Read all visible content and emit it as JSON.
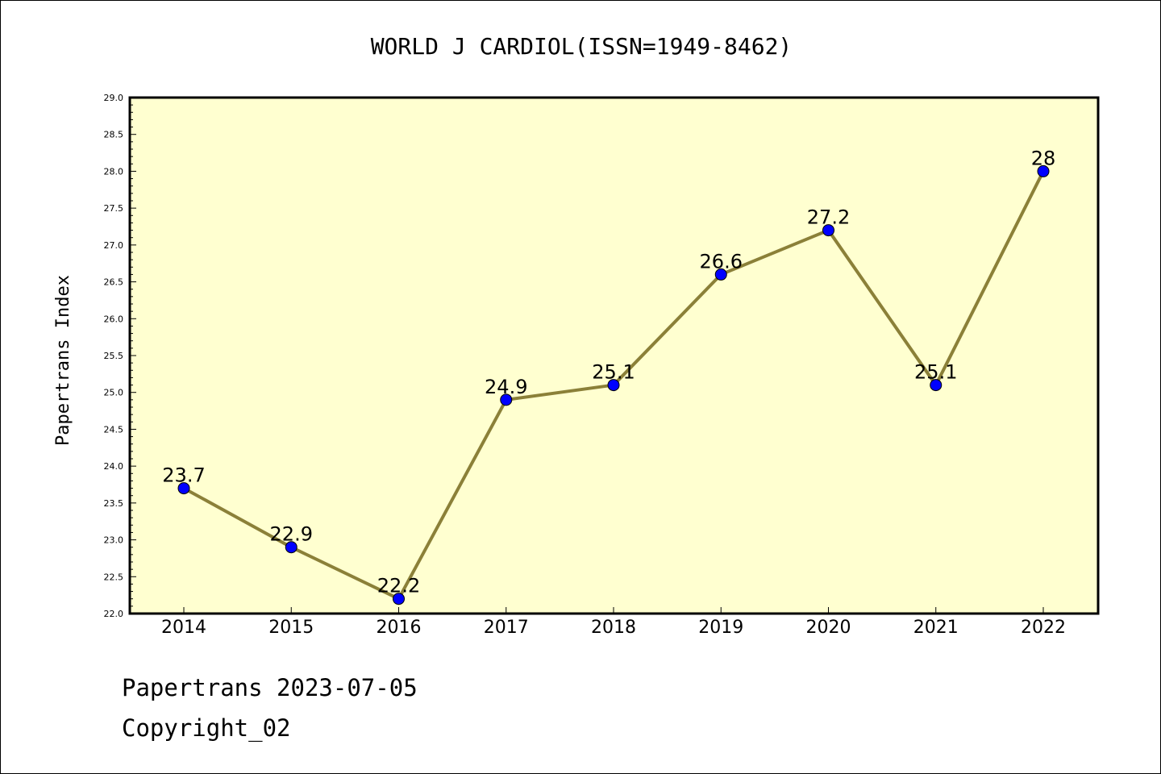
{
  "chart_data": {
    "type": "line",
    "title": "WORLD J CARDIOL(ISSN=1949-8462)",
    "xlabel": "",
    "ylabel": "Papertrans Index",
    "x": [
      "2014",
      "2015",
      "2016",
      "2017",
      "2018",
      "2019",
      "2020",
      "2021",
      "2022"
    ],
    "values": [
      23.7,
      22.9,
      22.2,
      24.9,
      25.1,
      26.6,
      27.2,
      25.1,
      28
    ],
    "data_labels": [
      "23.7",
      "22.9",
      "22.2",
      "24.9",
      "25.1",
      "26.6",
      "27.2",
      "25.1",
      "28"
    ],
    "ylim": [
      22.0,
      29.0
    ],
    "yticks": [
      "22.0",
      "22.5",
      "23.0",
      "23.5",
      "24.0",
      "24.5",
      "25.0",
      "25.5",
      "26.0",
      "26.5",
      "27.0",
      "27.5",
      "28.0",
      "28.5",
      "29.0"
    ],
    "grid": false,
    "colors": {
      "plot_background": "#ffffd0",
      "line": "#8b8038",
      "marker": "#0000ff"
    }
  },
  "footer": {
    "line1": "Papertrans 2023-07-05",
    "line2": "Copyright_02"
  }
}
